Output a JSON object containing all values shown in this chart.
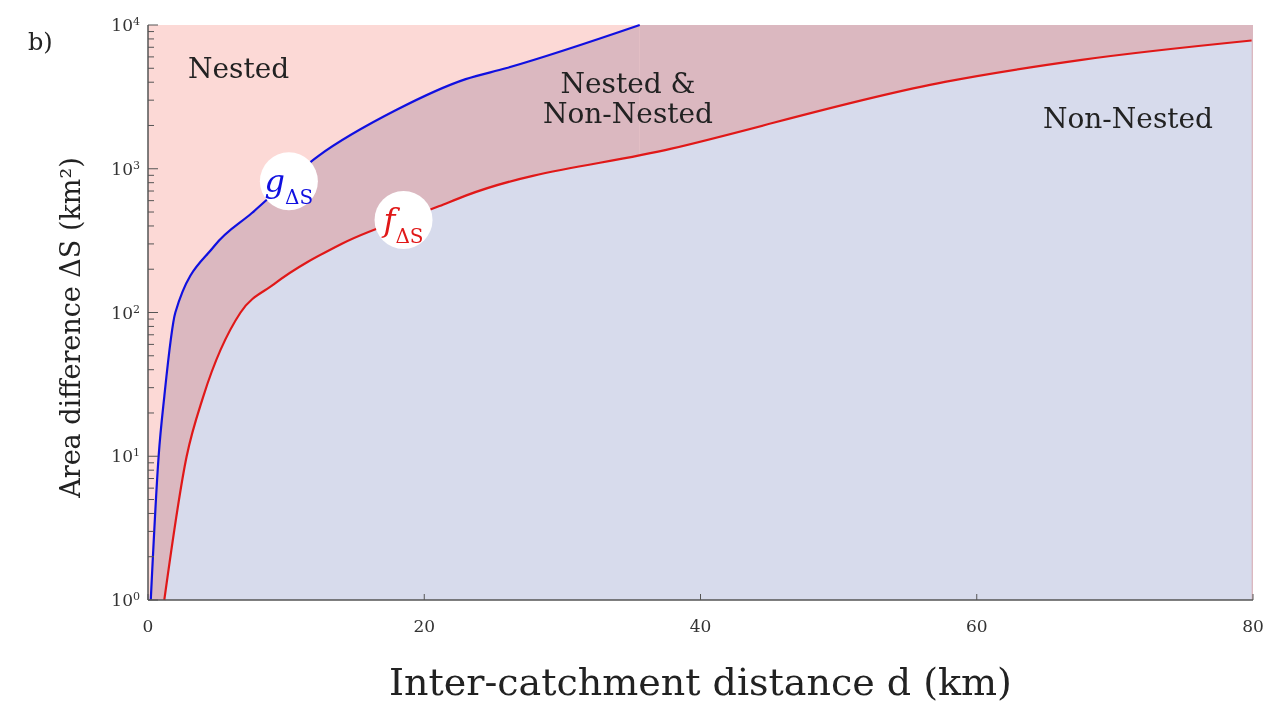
{
  "chart_data": {
    "type": "area",
    "xlabel": "Inter-catchment distance d (km)",
    "ylabel": "Area difference ΔS  (km²)",
    "xlim": [
      0,
      80
    ],
    "xticks": [
      0,
      20,
      40,
      60,
      80
    ],
    "ylim": [
      1,
      10000
    ],
    "log": "y",
    "yticks": [
      {
        "value": 1,
        "label": "10$^{0}$"
      },
      {
        "value": 10,
        "label": "10$^{1}$"
      },
      {
        "value": 100,
        "label": "10$^{2}$"
      },
      {
        "value": 1000,
        "label": "10$^{3}$"
      },
      {
        "value": 10000,
        "label": "10$^{4}$"
      }
    ],
    "grid": false,
    "legend": false,
    "marker": "none",
    "line_style": "solid",
    "bands": [
      {
        "axis": "y",
        "from": 1,
        "to": 10000,
        "color": "#fcd9d6"
      },
      {
        "axis": "x",
        "from": 35.6,
        "to": 80,
        "color": "#dbb8c0"
      }
    ],
    "series": [
      {
        "name": "g$_{ΔS}$",
        "color": "#1010e0",
        "x": [
          0.2,
          0.77,
          1.18,
          1.98,
          4.8,
          7.5,
          12.3,
          18,
          23,
          25.9,
          35.6
        ],
        "values": [
          1,
          10,
          26,
          100,
          290,
          490,
          1220,
          2570,
          4200,
          5000,
          10000
        ]
      },
      {
        "name": "f$_{ΔS}$",
        "color": "#e01818",
        "x": [
          1.18,
          2.8,
          4,
          6.7,
          9.1,
          14,
          21.1,
          23,
          37.9,
          57.7,
          67.6,
          79.9
        ],
        "values": [
          1,
          10,
          26,
          100,
          157,
          300,
          550,
          650,
          1380,
          4020,
          5720,
          7800
        ]
      }
    ],
    "annotations": [
      "b)",
      "Nested",
      "Nested &\nNon-Nested",
      "Non-Nested"
    ]
  }
}
